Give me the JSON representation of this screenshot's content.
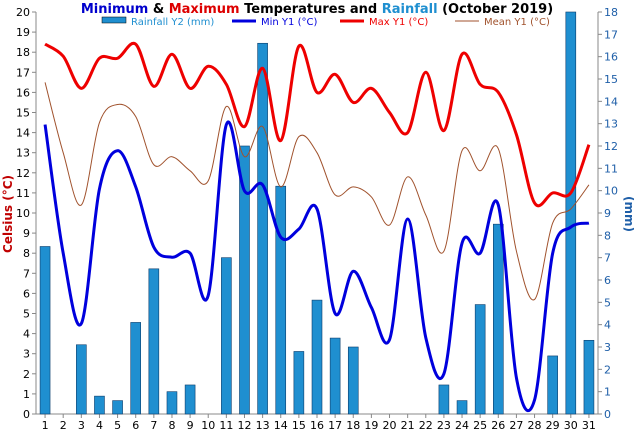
{
  "title": {
    "parts": [
      {
        "text": "Minimum",
        "color": "#0000cc"
      },
      {
        "text": " & ",
        "color": "#000000"
      },
      {
        "text": "Maximum",
        "color": "#dd0000"
      },
      {
        "text": " Temperatures and ",
        "color": "#000000"
      },
      {
        "text": "Rainfall",
        "color": "#1f8fd0"
      },
      {
        "text": " (October 2019)",
        "color": "#000000"
      }
    ]
  },
  "axes": {
    "y_left_label": "Celsius (°C)",
    "y_right_label": "(mm)"
  },
  "legend": [
    {
      "key": "rain",
      "label": "Rainfall Y2 (mm)",
      "color": "#1f8fd0",
      "swatch": "bar"
    },
    {
      "key": "min",
      "label": "Min Y1 (°C)",
      "color": "#0000dd",
      "swatch": "line"
    },
    {
      "key": "max",
      "label": "Max Y1 (°C)",
      "color": "#ee0000",
      "swatch": "line"
    },
    {
      "key": "mean",
      "label": "Mean Y1 (°C)",
      "color": "#a0522d",
      "swatch": "line"
    }
  ],
  "chart_data": {
    "type": "bar+line",
    "x": [
      1,
      2,
      3,
      4,
      5,
      6,
      7,
      8,
      9,
      10,
      11,
      12,
      13,
      14,
      15,
      16,
      17,
      18,
      19,
      20,
      21,
      22,
      23,
      24,
      25,
      26,
      27,
      28,
      29,
      30,
      31
    ],
    "x_ticks": [
      "1",
      "2",
      "3",
      "4",
      "5",
      "6",
      "7",
      "8",
      "9",
      "10",
      "11",
      "12",
      "13",
      "14",
      "15",
      "16",
      "17",
      "18",
      "19",
      "20",
      "21",
      "22",
      "23",
      "24",
      "25",
      "26",
      "27",
      "28",
      "29",
      "30",
      "31"
    ],
    "y_left": {
      "min": 0,
      "max": 20,
      "step": 1,
      "ticks": [
        "0",
        "1",
        "2",
        "3",
        "4",
        "5",
        "6",
        "7",
        "8",
        "9",
        "10",
        "11",
        "12",
        "13",
        "14",
        "15",
        "16",
        "17",
        "18",
        "19",
        "20"
      ]
    },
    "y_right": {
      "min": 0,
      "max": 18,
      "step": 1,
      "ticks": [
        "0",
        "1",
        "2",
        "3",
        "4",
        "5",
        "6",
        "7",
        "8",
        "9",
        "10",
        "11",
        "12",
        "13",
        "14",
        "15",
        "16",
        "17",
        "18"
      ]
    },
    "series": [
      {
        "name": "Rainfall Y2 (mm)",
        "kind": "bar",
        "axis": "right",
        "color": "#1f8fd0",
        "values": [
          7.5,
          0,
          3.1,
          0.8,
          0.6,
          4.1,
          6.5,
          1.0,
          1.3,
          0,
          7.0,
          12.0,
          16.6,
          10.2,
          2.8,
          5.1,
          3.4,
          3.0,
          0,
          0,
          0,
          0,
          1.3,
          0.6,
          4.9,
          8.5,
          0,
          0,
          2.6,
          18.0,
          3.3
        ]
      },
      {
        "name": "Min Y1 (°C)",
        "kind": "line",
        "axis": "left",
        "color": "#0000dd",
        "values": [
          14.4,
          8.0,
          4.5,
          11.2,
          13.1,
          11.3,
          8.3,
          7.8,
          8.0,
          5.9,
          14.4,
          11.1,
          11.4,
          8.8,
          9.2,
          10.2,
          5.0,
          7.1,
          5.3,
          3.7,
          9.7,
          3.8,
          2.0,
          8.5,
          8.0,
          10.4,
          1.8,
          0.7,
          8.0,
          9.3,
          9.5
        ]
      },
      {
        "name": "Max Y1 (°C)",
        "kind": "line",
        "axis": "left",
        "color": "#ee0000",
        "values": [
          18.4,
          17.8,
          16.2,
          17.7,
          17.7,
          18.4,
          16.3,
          17.9,
          16.2,
          17.3,
          16.4,
          14.3,
          17.2,
          13.6,
          18.3,
          16.0,
          16.9,
          15.5,
          16.2,
          15.0,
          14.0,
          17.0,
          14.1,
          17.9,
          16.4,
          16.0,
          13.9,
          10.5,
          11.0,
          11.0,
          13.4
        ]
      },
      {
        "name": "Mean Y1 (°C)",
        "kind": "line",
        "axis": "left",
        "color": "#a0522d",
        "values": [
          16.5,
          13.0,
          10.4,
          14.5,
          15.4,
          14.8,
          12.4,
          12.8,
          12.1,
          11.6,
          15.3,
          12.8,
          14.3,
          11.3,
          13.8,
          13.0,
          10.9,
          11.3,
          10.8,
          9.4,
          11.8,
          9.9,
          8.1,
          13.1,
          12.1,
          13.2,
          8.1,
          5.7,
          9.5,
          10.2,
          11.4
        ]
      }
    ],
    "grid": false,
    "legend_position": "top"
  }
}
